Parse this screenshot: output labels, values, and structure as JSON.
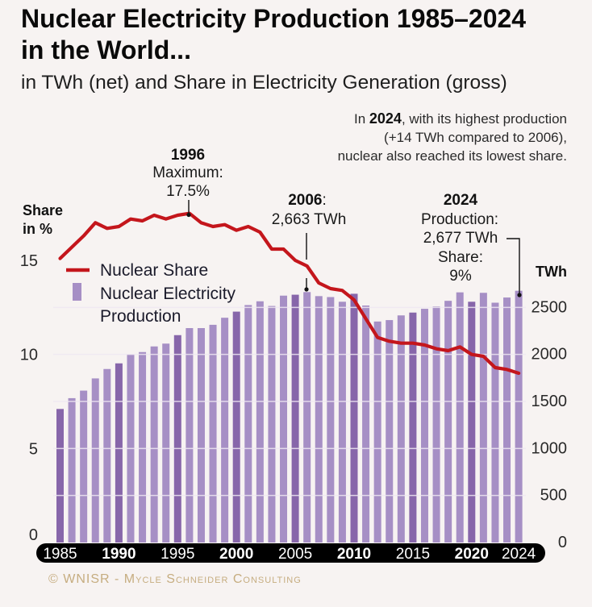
{
  "header": {
    "title_line1": "Nuclear Electricity Production 1985–2024",
    "title_line2": "in the World...",
    "subtitle": "in TWh (net) and Share in Electricity Generation (gross)"
  },
  "callout": {
    "line1_prefix": "In ",
    "line1_bold": "2024",
    "line1_suffix": ", with its highest production",
    "line2": "(+14 TWh compared to 2006),",
    "line3": "nuclear also reached its lowest share."
  },
  "footer": {
    "copyright": "© WNISR - Mycle Schneider Consulting"
  },
  "colors": {
    "background": "#f7f3f2",
    "bar_light": "#a68fc5",
    "bar_dark": "#8766aa",
    "share_line": "#c4161c",
    "axis_band": "#000000",
    "gridline": "#efe8f2",
    "footer_text": "#c6ad80"
  },
  "chart_data": {
    "type": "bar",
    "title": "Nuclear Electricity Production 1985–2024 in the World...",
    "subtitle": "in TWh (net) and Share in Electricity Generation (gross)",
    "categories": [
      1985,
      1986,
      1987,
      1988,
      1989,
      1990,
      1991,
      1992,
      1993,
      1994,
      1995,
      1996,
      1997,
      1998,
      1999,
      2000,
      2001,
      2002,
      2003,
      2004,
      2005,
      2006,
      2007,
      2008,
      2009,
      2010,
      2011,
      2012,
      2013,
      2014,
      2015,
      2016,
      2017,
      2018,
      2019,
      2020,
      2021,
      2022,
      2023,
      2024
    ],
    "series": [
      {
        "name": "Nuclear Electricity Production",
        "type": "bar",
        "axis": "right",
        "unit": "TWh",
        "values": [
          1420,
          1535,
          1615,
          1745,
          1845,
          1905,
          2000,
          2025,
          2085,
          2115,
          2205,
          2280,
          2280,
          2315,
          2390,
          2455,
          2525,
          2565,
          2515,
          2625,
          2635,
          2663,
          2620,
          2610,
          2560,
          2645,
          2520,
          2350,
          2365,
          2415,
          2445,
          2485,
          2510,
          2570,
          2660,
          2560,
          2655,
          2550,
          2605,
          2677
        ]
      },
      {
        "name": "Nuclear Share",
        "type": "line",
        "axis": "left",
        "unit": "%",
        "values": [
          15.1,
          15.7,
          16.3,
          17.0,
          16.7,
          16.8,
          17.2,
          17.1,
          17.4,
          17.2,
          17.4,
          17.5,
          17.0,
          16.8,
          16.9,
          16.6,
          16.8,
          16.5,
          15.6,
          15.6,
          15.0,
          14.7,
          13.8,
          13.5,
          13.4,
          12.9,
          11.9,
          10.9,
          10.7,
          10.6,
          10.6,
          10.5,
          10.3,
          10.2,
          10.4,
          10.0,
          9.9,
          9.3,
          9.2,
          9.0
        ]
      }
    ],
    "highlight_years": [
      1985,
      1990,
      1995,
      2000,
      2005,
      2010,
      2015,
      2020
    ],
    "x_ticks": [
      {
        "label": "1985",
        "bold": false
      },
      {
        "label": "1990",
        "bold": true
      },
      {
        "label": "1995",
        "bold": false
      },
      {
        "label": "2000",
        "bold": true
      },
      {
        "label": "2005",
        "bold": false
      },
      {
        "label": "2010",
        "bold": true
      },
      {
        "label": "2015",
        "bold": false
      },
      {
        "label": "2020",
        "bold": true
      },
      {
        "label": "2024",
        "bold": false
      }
    ],
    "left_axis": {
      "title_line1": "Share",
      "title_line2": "in %",
      "ticks": [
        0,
        5,
        10,
        15
      ],
      "range": [
        0,
        18
      ]
    },
    "right_axis": {
      "title": "TWh",
      "ticks": [
        0,
        500,
        1000,
        1500,
        2000,
        2500
      ],
      "range": [
        0,
        3600
      ]
    },
    "grid": true,
    "legend": {
      "placement": "top-left",
      "items": [
        {
          "label": "Nuclear Share",
          "type": "line"
        },
        {
          "label_line1": "Nuclear Electricity",
          "label_line2": "Production",
          "type": "bar"
        }
      ]
    },
    "annotations": [
      {
        "year": "1996",
        "suffix": "",
        "lines": [
          "Maximum:",
          "17.5%"
        ]
      },
      {
        "year": "2006",
        "suffix": ":",
        "lines": [
          "2,663 TWh"
        ]
      },
      {
        "year": "2024",
        "suffix": "",
        "lines": [
          "Production:",
          "2,677 TWh",
          "Share:",
          "9%"
        ]
      }
    ]
  }
}
